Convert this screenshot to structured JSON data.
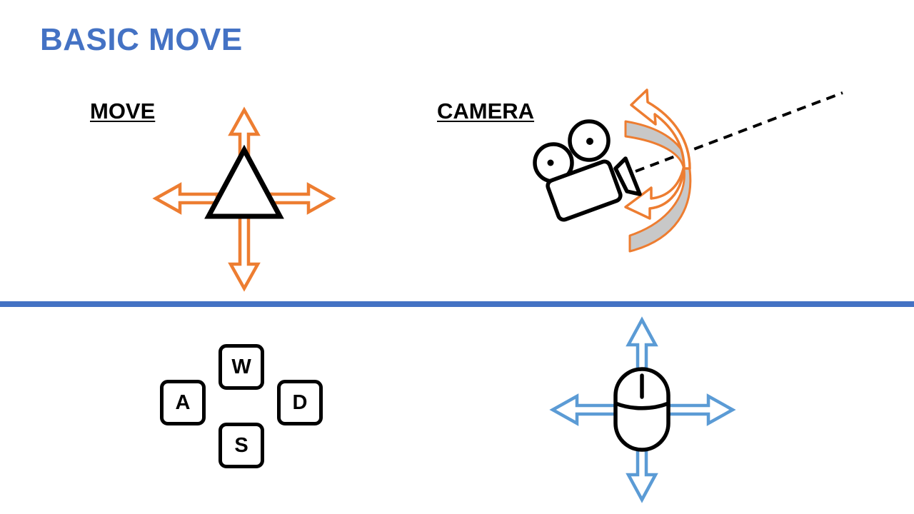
{
  "title": "BASIC MOVE",
  "sections": {
    "move": {
      "label": "MOVE"
    },
    "camera": {
      "label": "CAMERA"
    }
  },
  "keys": {
    "w": "W",
    "a": "A",
    "s": "S",
    "d": "D"
  },
  "colors": {
    "title": "#4472C4",
    "divider": "#4472C4",
    "move_arrows": "#ED7D31",
    "mouse_arrows": "#5B9BD5",
    "camera_swing_fill": "#C8C8C8",
    "outline": "#000000"
  },
  "icons": {
    "player": "triangle-player-icon",
    "camera": "movie-camera-icon",
    "mouse": "mouse-icon"
  }
}
